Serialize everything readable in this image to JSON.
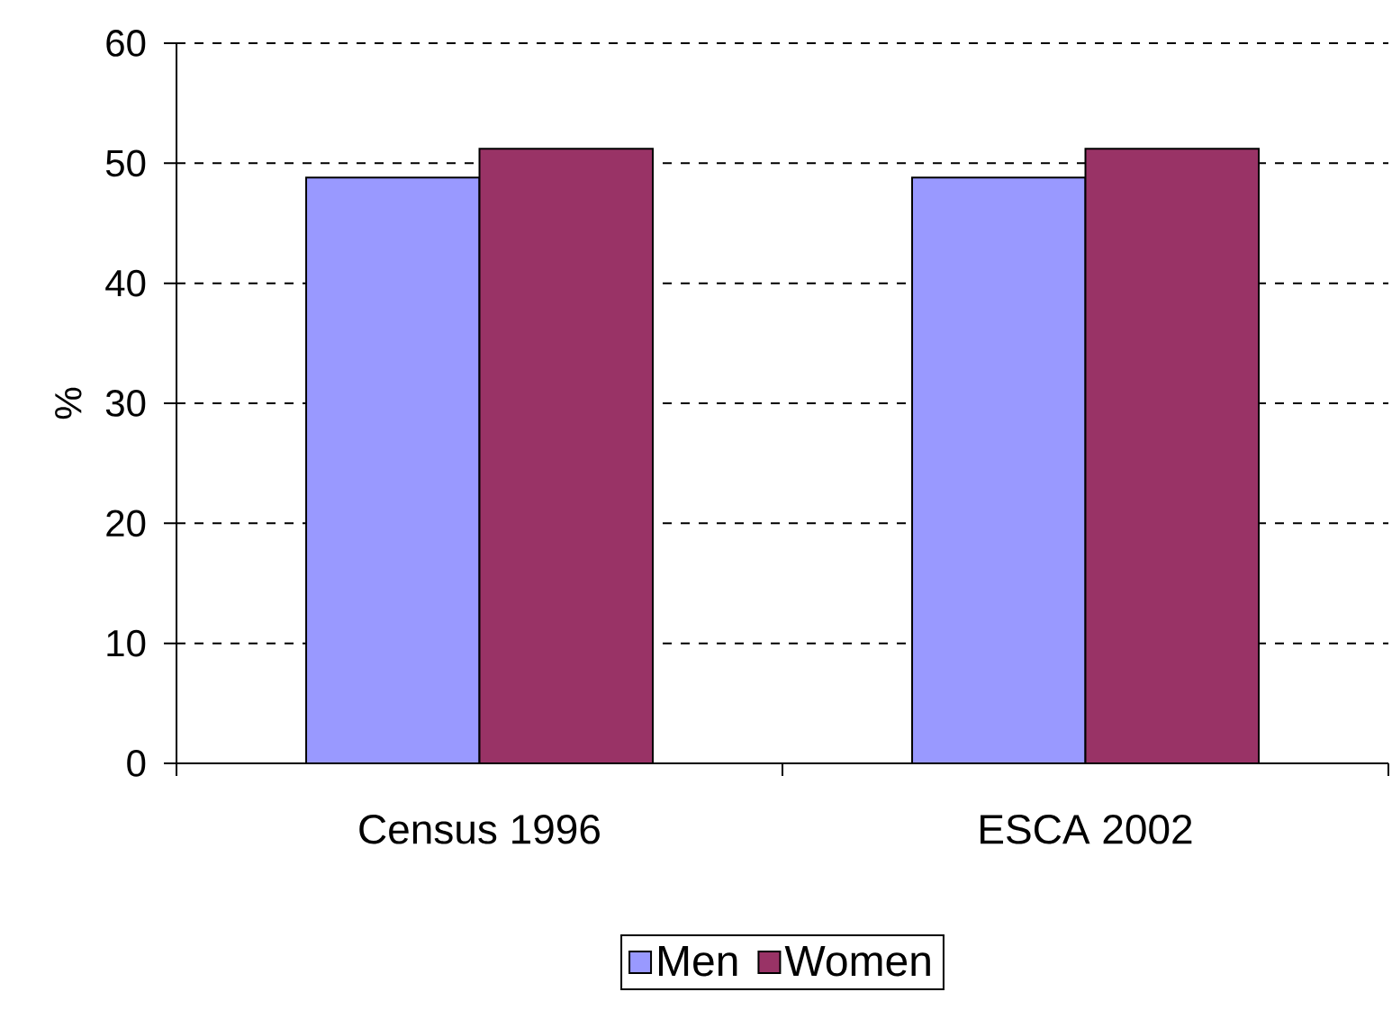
{
  "chart_data": {
    "type": "bar",
    "ylabel": "%",
    "categories": [
      "Census 1996",
      "ESCA 2002"
    ],
    "series": [
      {
        "name": "Men",
        "color": "#9999ff",
        "values": [
          48.8,
          48.8
        ]
      },
      {
        "name": "Women",
        "color": "#993366",
        "values": [
          51.2,
          51.2
        ]
      }
    ],
    "ylim": [
      0,
      60
    ],
    "yticks": [
      0,
      10,
      20,
      30,
      40,
      50,
      60
    ],
    "grid": "y",
    "legend": "bottom"
  }
}
